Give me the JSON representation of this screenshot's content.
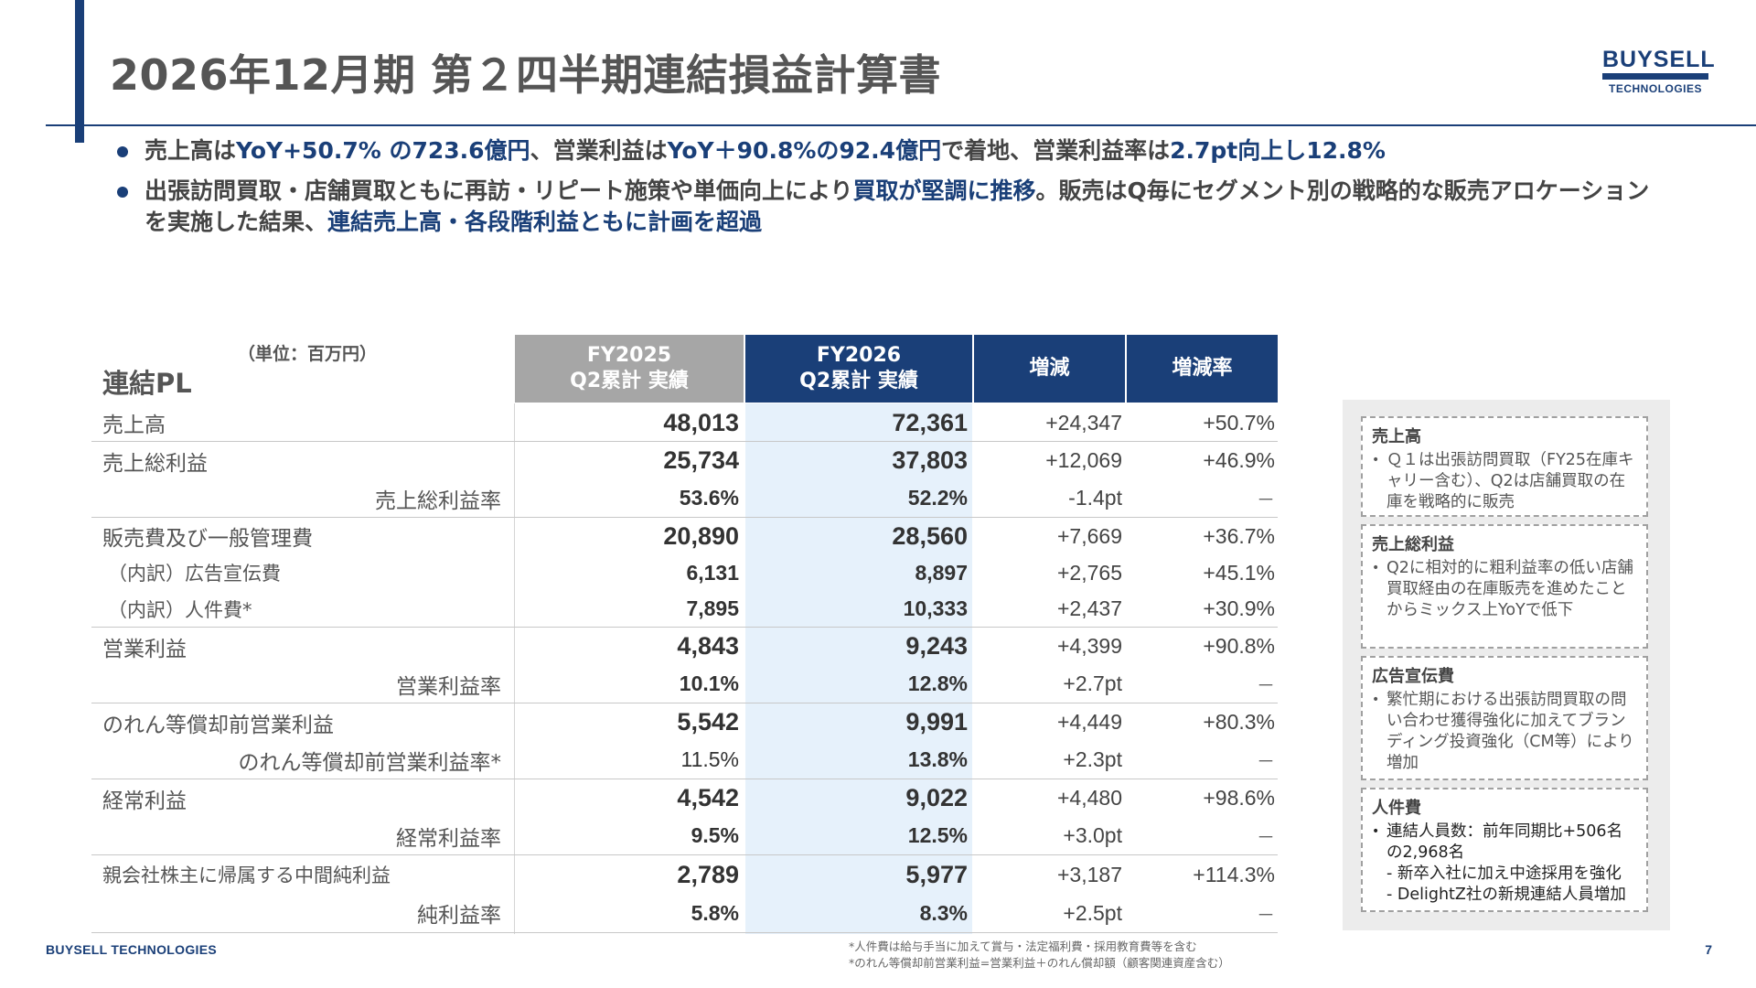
{
  "header": {
    "title": "2026年12月期 第２四半期連結損益計算書",
    "logo_line1": "BUYSELL",
    "logo_line2": "TECHNOLOGIES"
  },
  "bullets": [
    {
      "parts": [
        {
          "text": "売上高は",
          "hl": false
        },
        {
          "text": "YoY+50.7% の723.6億円",
          "hl": true
        },
        {
          "text": "、営業利益は",
          "hl": false
        },
        {
          "text": "YoY＋90.8%の92.4億円",
          "hl": true
        },
        {
          "text": "で着地、営業利益率は",
          "hl": false
        },
        {
          "text": "2.7pt向上し12.8%",
          "hl": true
        }
      ]
    },
    {
      "parts": [
        {
          "text": "出張訪問買取・店舗買取ともに再訪・リピート施策や単価向上により",
          "hl": false
        },
        {
          "text": "買取が堅調に推移",
          "hl": true
        },
        {
          "text": "。販売はQ毎にセグメント別の戦略的な販売アロケーションを実施した結果、",
          "hl": false
        },
        {
          "text": "連結売上高・各段階利益ともに計画を超過",
          "hl": true
        }
      ]
    }
  ],
  "table": {
    "unit": "（単位：百万円）",
    "title": "連結PL",
    "headers": {
      "prev_line1": "FY2025",
      "prev_line2": "Q2累計 実績",
      "cur_line1": "FY2026",
      "cur_line2": "Q2累計 実績",
      "change": "増減",
      "rate": "増減率"
    },
    "rows": [
      {
        "label": "売上高",
        "prev": "48,013",
        "cur": "72,361",
        "change": "+24,347",
        "rate": "+50.7%"
      },
      {
        "label": "売上総利益",
        "prev": "25,734",
        "cur": "37,803",
        "change": "+12,069",
        "rate": "+46.9%"
      },
      {
        "label": "売上総利益率",
        "prev": "53.6%",
        "cur": "52.2%",
        "change": "-1.4pt",
        "rate": "－"
      },
      {
        "label": "販売費及び一般管理費",
        "prev": "20,890",
        "cur": "28,560",
        "change": "+7,669",
        "rate": "+36.7%"
      },
      {
        "label": "（内訳）広告宣伝費",
        "prev": "6,131",
        "cur": "8,897",
        "change": "+2,765",
        "rate": "+45.1%"
      },
      {
        "label": "（内訳）人件費*",
        "prev": "7,895",
        "cur": "10,333",
        "change": "+2,437",
        "rate": "+30.9%"
      },
      {
        "label": "営業利益",
        "prev": "4,843",
        "cur": "9,243",
        "change": "+4,399",
        "rate": "+90.8%"
      },
      {
        "label": "営業利益率",
        "prev": "10.1%",
        "cur": "12.8%",
        "change": "+2.7pt",
        "rate": "－"
      },
      {
        "label": "のれん等償却前営業利益",
        "prev": "5,542",
        "cur": "9,991",
        "change": "+4,449",
        "rate": "+80.3%"
      },
      {
        "label": "のれん等償却前営業利益率*",
        "prev": "11.5%",
        "cur": "13.8%",
        "change": "+2.3pt",
        "rate": "－"
      },
      {
        "label": "経常利益",
        "prev": "4,542",
        "cur": "9,022",
        "change": "+4,480",
        "rate": "+98.6%"
      },
      {
        "label": "経常利益率",
        "prev": "9.5%",
        "cur": "12.5%",
        "change": "+3.0pt",
        "rate": "－"
      },
      {
        "label": "親会社株主に帰属する中間純利益",
        "prev": "2,789",
        "cur": "5,977",
        "change": "+3,187",
        "rate": "+114.3%"
      },
      {
        "label": "純利益率",
        "prev": "5.8%",
        "cur": "8.3%",
        "change": "+2.5pt",
        "rate": "－"
      }
    ]
  },
  "side_notes": [
    {
      "title": "売上高",
      "items": [
        "Ｑ１は出張訪問買取（FY25在庫キャリー含む）、Q2は店舗買取の在庫を戦略的に販売"
      ],
      "subitems": []
    },
    {
      "title": "売上総利益",
      "items": [
        "Q2に相対的に粗利益率の低い店舗買取経由の在庫販売を進めたことからミックス上YoYで低下"
      ],
      "subitems": []
    },
    {
      "title": "広告宣伝費",
      "items": [
        "繁忙期における出張訪問買取の問い合わせ獲得強化に加えてブランディング投資強化（CM等）により増加"
      ],
      "subitems": []
    },
    {
      "title": "人件費",
      "items": [
        "連結人員数：前年同期比+506名の2,968名"
      ],
      "subitems": [
        "- 新卒入社に加え中途採用を強化",
        "- DelightZ社の新規連結人員増加"
      ]
    }
  ],
  "footer": {
    "brand": "BUYSELL TECHNOLOGIES",
    "note1": "*人件費は給与手当に加えて賞与・法定福利費・採用教育費等を含む",
    "note2": "*のれん等償却前営業利益=営業利益＋のれん償却額（顧客関連資産含む）",
    "page": "7"
  }
}
